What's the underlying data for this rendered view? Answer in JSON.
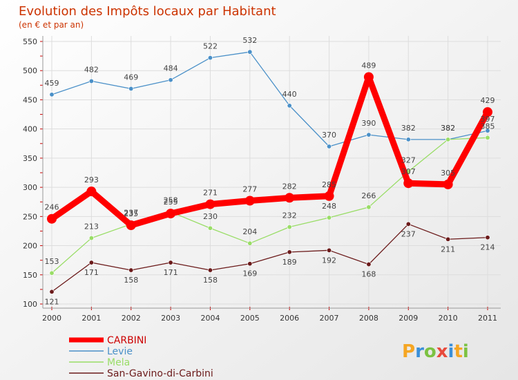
{
  "chart_data": {
    "type": "line",
    "title": "Evolution des Impôts locaux par Habitant",
    "subtitle": "(en € et par an)",
    "xlabel": "",
    "ylabel": "",
    "categories": [
      "2000",
      "2001",
      "2002",
      "2003",
      "2004",
      "2005",
      "2006",
      "2007",
      "2008",
      "2009",
      "2010",
      "2011"
    ],
    "ylim": [
      100,
      550
    ],
    "yticks": [
      100,
      150,
      200,
      250,
      300,
      350,
      400,
      450,
      500,
      550
    ],
    "grid": true,
    "legend_position": "bottom-left",
    "series": [
      {
        "name": "CARBINI",
        "color": "#ff0000",
        "values": [
          246,
          293,
          235,
          255,
          271,
          277,
          282,
          285,
          489,
          307,
          305,
          429
        ]
      },
      {
        "name": "Levie",
        "color": "#4a90c8",
        "values": [
          459,
          482,
          469,
          484,
          522,
          532,
          440,
          370,
          390,
          382,
          382,
          397
        ]
      },
      {
        "name": "Mela",
        "color": "#99dd66",
        "values": [
          153,
          213,
          237,
          258,
          230,
          204,
          232,
          248,
          266,
          327,
          382,
          385
        ]
      },
      {
        "name": "San-Gavino-di-Carbini",
        "color": "#6b1a1a",
        "values": [
          121,
          171,
          158,
          171,
          158,
          169,
          189,
          192,
          168,
          237,
          211,
          214
        ]
      }
    ],
    "logo": "Proxiti"
  }
}
